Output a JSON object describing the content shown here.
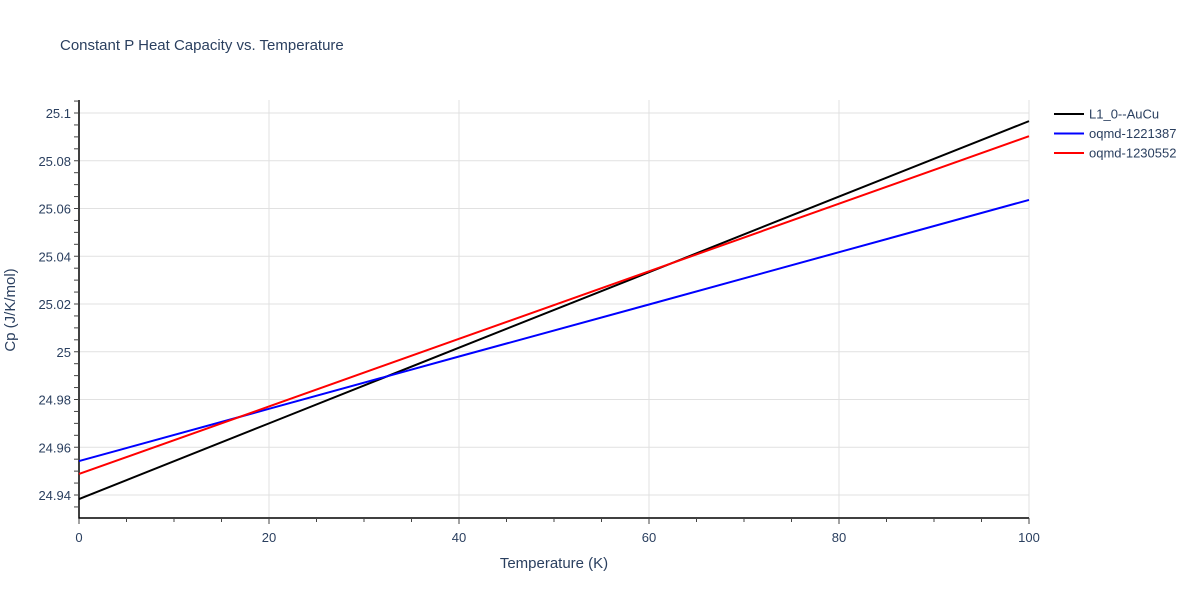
{
  "chart_data": {
    "type": "line",
    "title": "Constant P Heat Capacity vs. Temperature",
    "xlabel": "Temperature (K)",
    "ylabel": "Cp (J/K/mol)",
    "xlim": [
      0,
      100
    ],
    "ylim": [
      24.9306,
      25.1057
    ],
    "xticks": [
      0,
      20,
      40,
      60,
      80,
      100
    ],
    "xtick_labels": [
      "0",
      "20",
      "40",
      "60",
      "80",
      "100"
    ],
    "yticks": [
      24.94,
      24.96,
      24.98,
      25.0,
      25.02,
      25.04,
      25.06,
      25.08,
      25.1
    ],
    "ytick_labels": [
      "24.94",
      "24.96",
      "24.98",
      "25",
      "25.02",
      "25.04",
      "25.06",
      "25.08",
      "25.1"
    ],
    "grid": true,
    "legend_position": "top-right outside",
    "series": [
      {
        "name": "L1_0--AuCu",
        "color": "#000000",
        "x": [
          0,
          20,
          40,
          60,
          80,
          100
        ],
        "y": [
          24.9383,
          24.97,
          25.0017,
          25.0333,
          25.065,
          25.0966
        ]
      },
      {
        "name": "oqmd-1221387",
        "color": "#0000ff",
        "x": [
          0,
          20,
          40,
          60,
          80,
          100
        ],
        "y": [
          24.9542,
          24.9761,
          24.998,
          25.0198,
          25.0417,
          25.0636
        ]
      },
      {
        "name": "oqmd-1230552",
        "color": "#ff0000",
        "x": [
          0,
          20,
          40,
          60,
          80,
          100
        ],
        "y": [
          24.9488,
          24.9771,
          25.0054,
          25.0337,
          25.062,
          25.0903
        ]
      }
    ]
  }
}
